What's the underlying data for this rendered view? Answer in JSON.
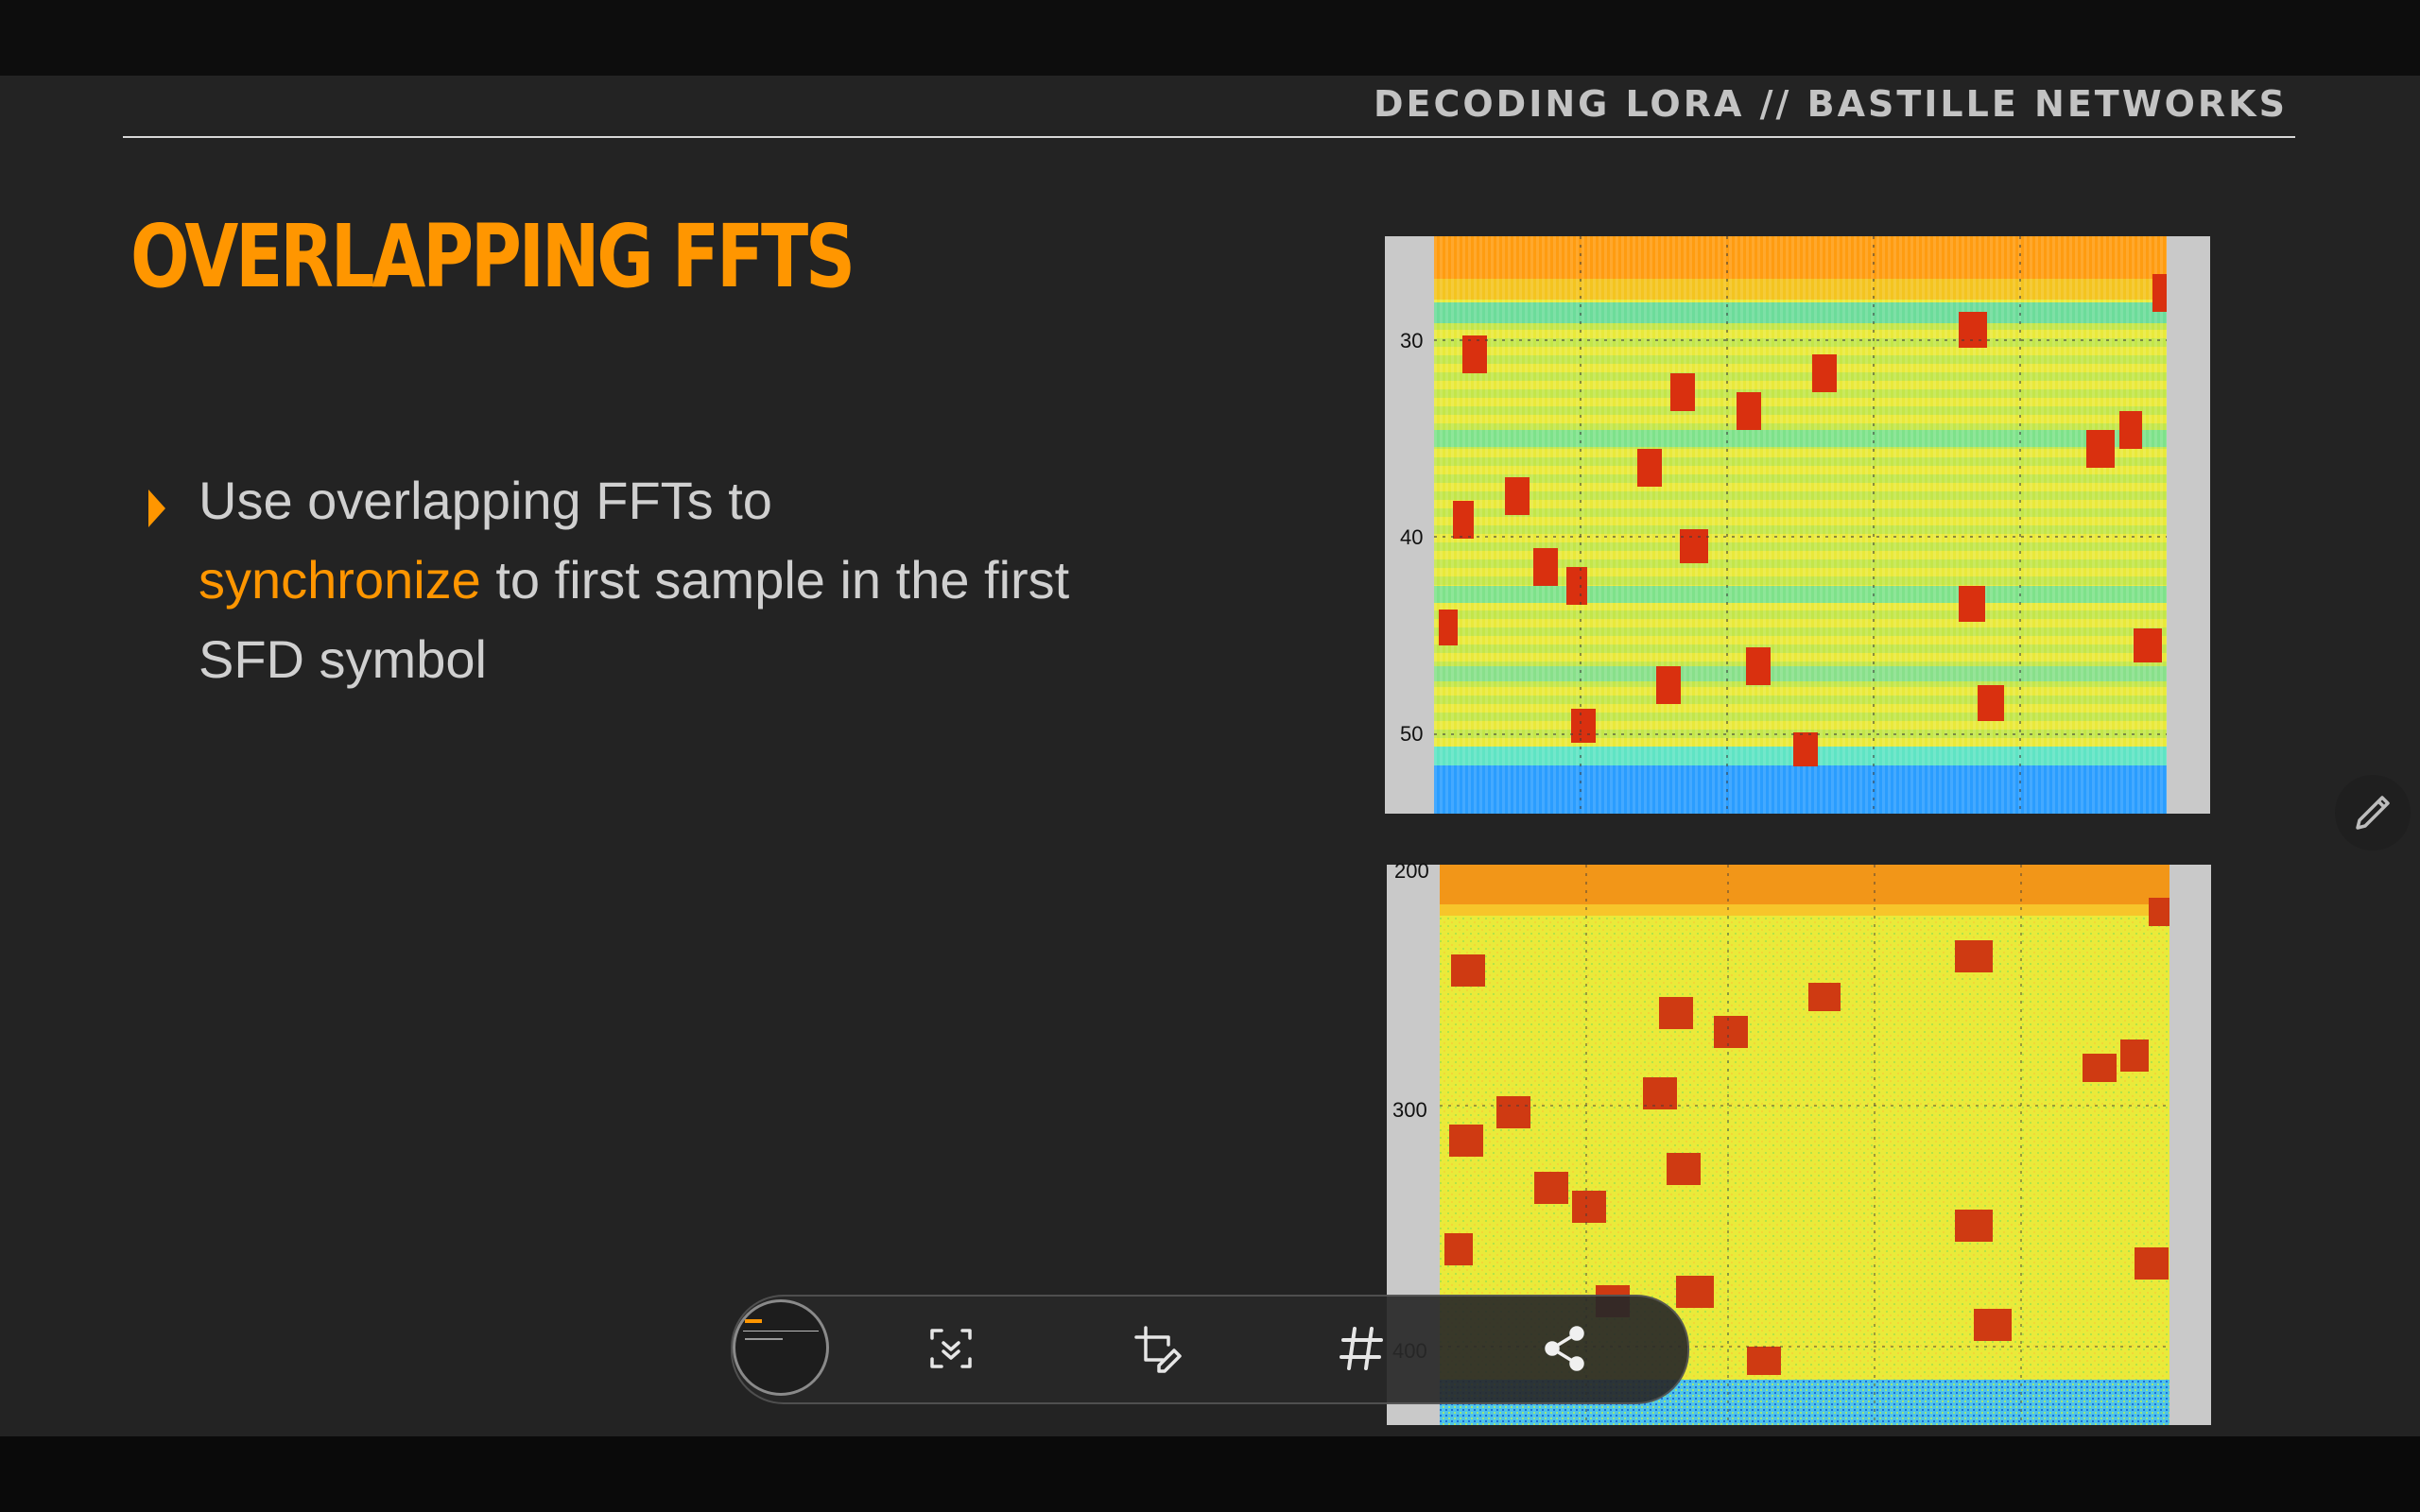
{
  "slide": {
    "header": "DECODING LORA // BASTILLE NETWORKS",
    "title": "OVERLAPPING FFTS",
    "bullet": {
      "part1": "Use overlapping FFTs to",
      "highlight": "synchronize",
      "part2": " to first sample in the first SFD symbol"
    }
  },
  "plots": [
    {
      "name": "top-spectrogram",
      "y_ticks": [
        "30",
        "40",
        "50"
      ]
    },
    {
      "name": "bottom-spectrogram",
      "y_ticks": [
        "200",
        "300",
        "400"
      ]
    }
  ],
  "toolbar": {
    "icons": [
      "slide-thumbnail",
      "scroll-capture-icon",
      "crop-edit-icon",
      "hashtag-icon",
      "share-icon"
    ]
  },
  "colors": {
    "accent": "#ff9600",
    "slide_bg": "#232323"
  }
}
